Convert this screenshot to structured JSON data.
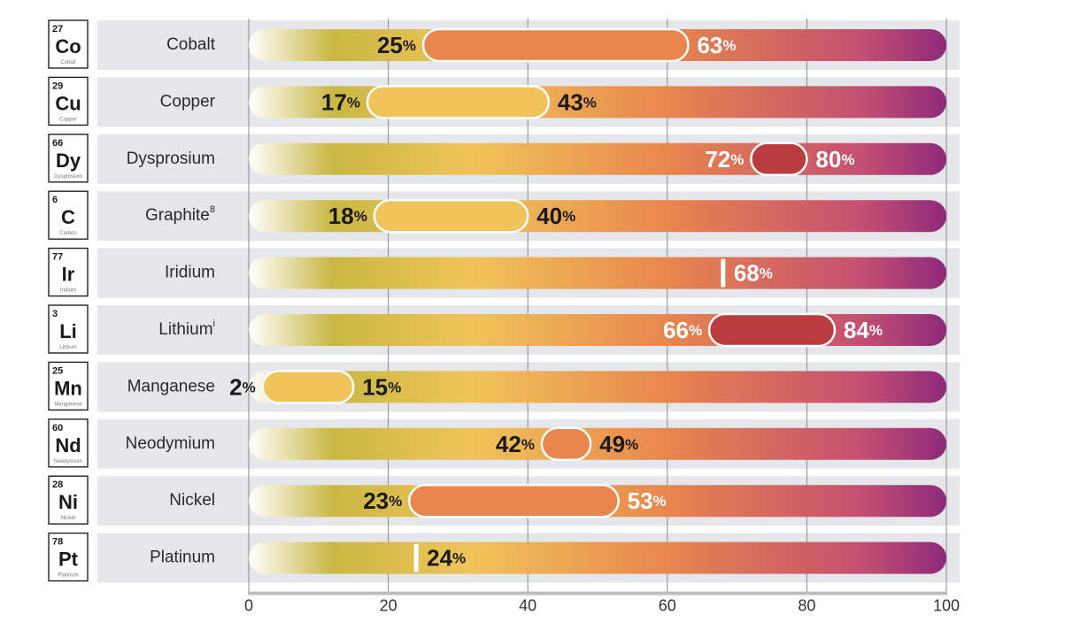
{
  "chart_data": {
    "type": "range-bar",
    "title": "",
    "xlabel": "",
    "ylabel": "",
    "xlim": [
      0,
      100
    ],
    "x_ticks": [
      0,
      20,
      40,
      60,
      80,
      100
    ],
    "percent_sign": "%",
    "rows": [
      {
        "number": "27",
        "symbol": "Co",
        "element": "Cobalt",
        "label": "Cobalt",
        "sup": "",
        "low": 25,
        "high": 63,
        "color": "#e8864d",
        "low_text_color": "#1a1a1a",
        "high_text_color": "#ffffff"
      },
      {
        "number": "29",
        "symbol": "Cu",
        "element": "Copper",
        "label": "Copper",
        "sup": "",
        "low": 17,
        "high": 43,
        "color": "#f0c45a",
        "low_text_color": "#1a1a1a",
        "high_text_color": "#1a1a1a"
      },
      {
        "number": "66",
        "symbol": "Dy",
        "element": "Dysprosium",
        "label": "Dysprosium",
        "sup": "",
        "low": 72,
        "high": 80,
        "color": "#bb3c3e",
        "low_text_color": "#ffffff",
        "high_text_color": "#ffffff"
      },
      {
        "number": "6",
        "symbol": "C",
        "element": "Carbon",
        "label": "Graphite",
        "sup": "8",
        "low": 18,
        "high": 40,
        "color": "#f0c45a",
        "low_text_color": "#1a1a1a",
        "high_text_color": "#1a1a1a"
      },
      {
        "number": "77",
        "symbol": "Ir",
        "element": "Iridium",
        "label": "Iridium",
        "sup": "",
        "low": 68,
        "high": 68,
        "color": "#ffffff",
        "low_text_color": "#ffffff",
        "high_text_color": "#ffffff"
      },
      {
        "number": "3",
        "symbol": "Li",
        "element": "Lithium",
        "label": "Lithium",
        "sup": "i",
        "low": 66,
        "high": 84,
        "color": "#bb3c3e",
        "low_text_color": "#ffffff",
        "high_text_color": "#ffffff"
      },
      {
        "number": "25",
        "symbol": "Mn",
        "element": "Manganese",
        "label": "Manganese",
        "sup": "",
        "low": 2,
        "high": 15,
        "color": "#f0c45a",
        "low_text_color": "#1a1a1a",
        "high_text_color": "#1a1a1a"
      },
      {
        "number": "60",
        "symbol": "Nd",
        "element": "Neodymium",
        "label": "Neodymium",
        "sup": "",
        "low": 42,
        "high": 49,
        "color": "#e8864d",
        "low_text_color": "#1a1a1a",
        "high_text_color": "#1a1a1a"
      },
      {
        "number": "28",
        "symbol": "Ni",
        "element": "Nickel",
        "label": "Nickel",
        "sup": "",
        "low": 23,
        "high": 53,
        "color": "#e8864d",
        "low_text_color": "#1a1a1a",
        "high_text_color": "#ffffff"
      },
      {
        "number": "78",
        "symbol": "Pt",
        "element": "Platinum",
        "label": "Platinum",
        "sup": "",
        "low": 24,
        "high": 24,
        "color": "#ffffff",
        "low_text_color": "#1a1a1a",
        "high_text_color": "#1a1a1a"
      }
    ],
    "gradient_colors": [
      "#ffffff",
      "#c9b843",
      "#f0c45a",
      "#e8864d",
      "#c44f72",
      "#8e2a7a"
    ]
  }
}
